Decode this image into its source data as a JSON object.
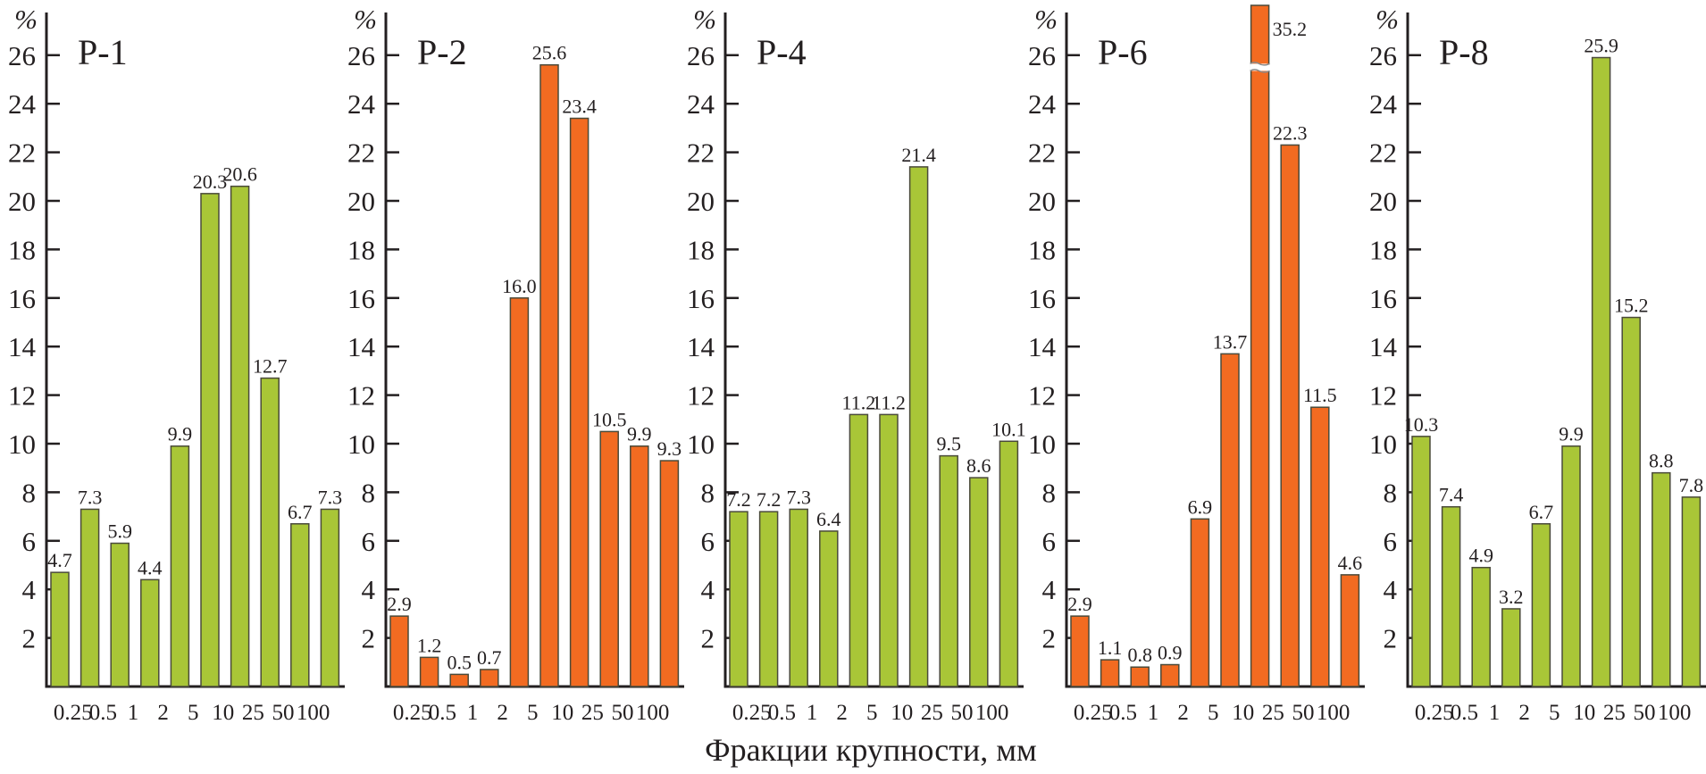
{
  "chart_data": [
    {
      "type": "bar",
      "title": "Р-1",
      "ylabel": "%",
      "xlabel": "Фракции крупности, мм",
      "categories": [
        "0.25",
        "0.5",
        "1",
        "2",
        "5",
        "10",
        "25",
        "50",
        "100"
      ],
      "bar_count": 10,
      "values": [
        4.7,
        7.3,
        5.9,
        4.4,
        9.9,
        20.3,
        20.6,
        12.7,
        6.7,
        7.3
      ],
      "value_labels": [
        "4.7",
        "7.3",
        "5.9",
        "4.4",
        "9.9",
        "20.3",
        "20.6",
        "12.7",
        "6.7",
        "7.3"
      ],
      "color": "#a9c637",
      "ylim": [
        0,
        27
      ],
      "yticks": [
        2,
        4,
        6,
        8,
        10,
        12,
        14,
        16,
        18,
        20,
        22,
        24,
        26
      ],
      "grid": false
    },
    {
      "type": "bar",
      "title": "Р-2",
      "ylabel": "%",
      "xlabel": "Фракции крупности, мм",
      "categories": [
        "0.25",
        "0.5",
        "1",
        "2",
        "5",
        "10",
        "25",
        "50",
        "100"
      ],
      "bar_count": 10,
      "values": [
        2.9,
        1.2,
        0.5,
        0.7,
        16.0,
        25.6,
        23.4,
        10.5,
        9.9,
        9.3
      ],
      "value_labels": [
        "2.9",
        "1.2",
        "0.5",
        "0.7",
        "16.0",
        "25.6",
        "23.4",
        "10.5",
        "9.9",
        "9.3"
      ],
      "color": "#f26b21",
      "ylim": [
        0,
        27
      ],
      "yticks": [
        2,
        4,
        6,
        8,
        10,
        12,
        14,
        16,
        18,
        20,
        22,
        24,
        26
      ],
      "grid": false
    },
    {
      "type": "bar",
      "title": "Р-4",
      "ylabel": "%",
      "xlabel": "Фракции крупности, мм",
      "categories": [
        "0.25",
        "0.5",
        "1",
        "2",
        "5",
        "10",
        "25",
        "50",
        "100"
      ],
      "bar_count": 10,
      "values": [
        7.2,
        7.2,
        7.3,
        6.4,
        11.2,
        11.2,
        21.4,
        9.5,
        8.6,
        10.1
      ],
      "value_labels": [
        "7.2",
        "7.2",
        "7.3",
        "6.4",
        "11.2",
        "11.2",
        "21.4",
        "9.5",
        "8.6",
        "10.1"
      ],
      "color": "#a9c637",
      "ylim": [
        0,
        27
      ],
      "yticks": [
        2,
        4,
        6,
        8,
        10,
        12,
        14,
        16,
        18,
        20,
        22,
        24,
        26
      ],
      "grid": false
    },
    {
      "type": "bar",
      "title": "Р-6",
      "ylabel": "%",
      "xlabel": "Фракции крупности, мм",
      "categories": [
        "0.25",
        "0.5",
        "1",
        "2",
        "5",
        "10",
        "25",
        "50",
        "100"
      ],
      "bar_count": 10,
      "values": [
        2.9,
        1.1,
        0.8,
        0.9,
        6.9,
        13.7,
        35.2,
        22.3,
        11.5,
        4.6
      ],
      "value_labels": [
        "2.9",
        "1.1",
        "0.8",
        "0.9",
        "6.9",
        "13.7",
        "35.2",
        "22.3",
        "11.5",
        "4.6"
      ],
      "broken_bar_index": 6,
      "color": "#f26b21",
      "ylim": [
        0,
        27
      ],
      "yticks": [
        2,
        4,
        6,
        8,
        10,
        12,
        14,
        16,
        18,
        20,
        22,
        24,
        26
      ],
      "grid": false
    },
    {
      "type": "bar",
      "title": "Р-8",
      "ylabel": "%",
      "xlabel": "Фракции крупности, мм",
      "categories": [
        "0.25",
        "0.5",
        "1",
        "2",
        "5",
        "10",
        "25",
        "50",
        "100"
      ],
      "bar_count": 10,
      "values": [
        10.3,
        7.4,
        4.9,
        3.2,
        6.7,
        9.9,
        25.9,
        15.2,
        8.8,
        7.8
      ],
      "value_labels": [
        "10.3",
        "7.4",
        "4.9",
        "3.2",
        "6.7",
        "9.9",
        "25.9",
        "15.2",
        "8.8",
        "7.8"
      ],
      "color": "#a9c637",
      "ylim": [
        0,
        27
      ],
      "yticks": [
        2,
        4,
        6,
        8,
        10,
        12,
        14,
        16,
        18,
        20,
        22,
        24,
        26
      ],
      "grid": false
    }
  ],
  "figure": {
    "shared_xlabel": "Фракции крупности, мм",
    "unit_symbol": "%"
  }
}
